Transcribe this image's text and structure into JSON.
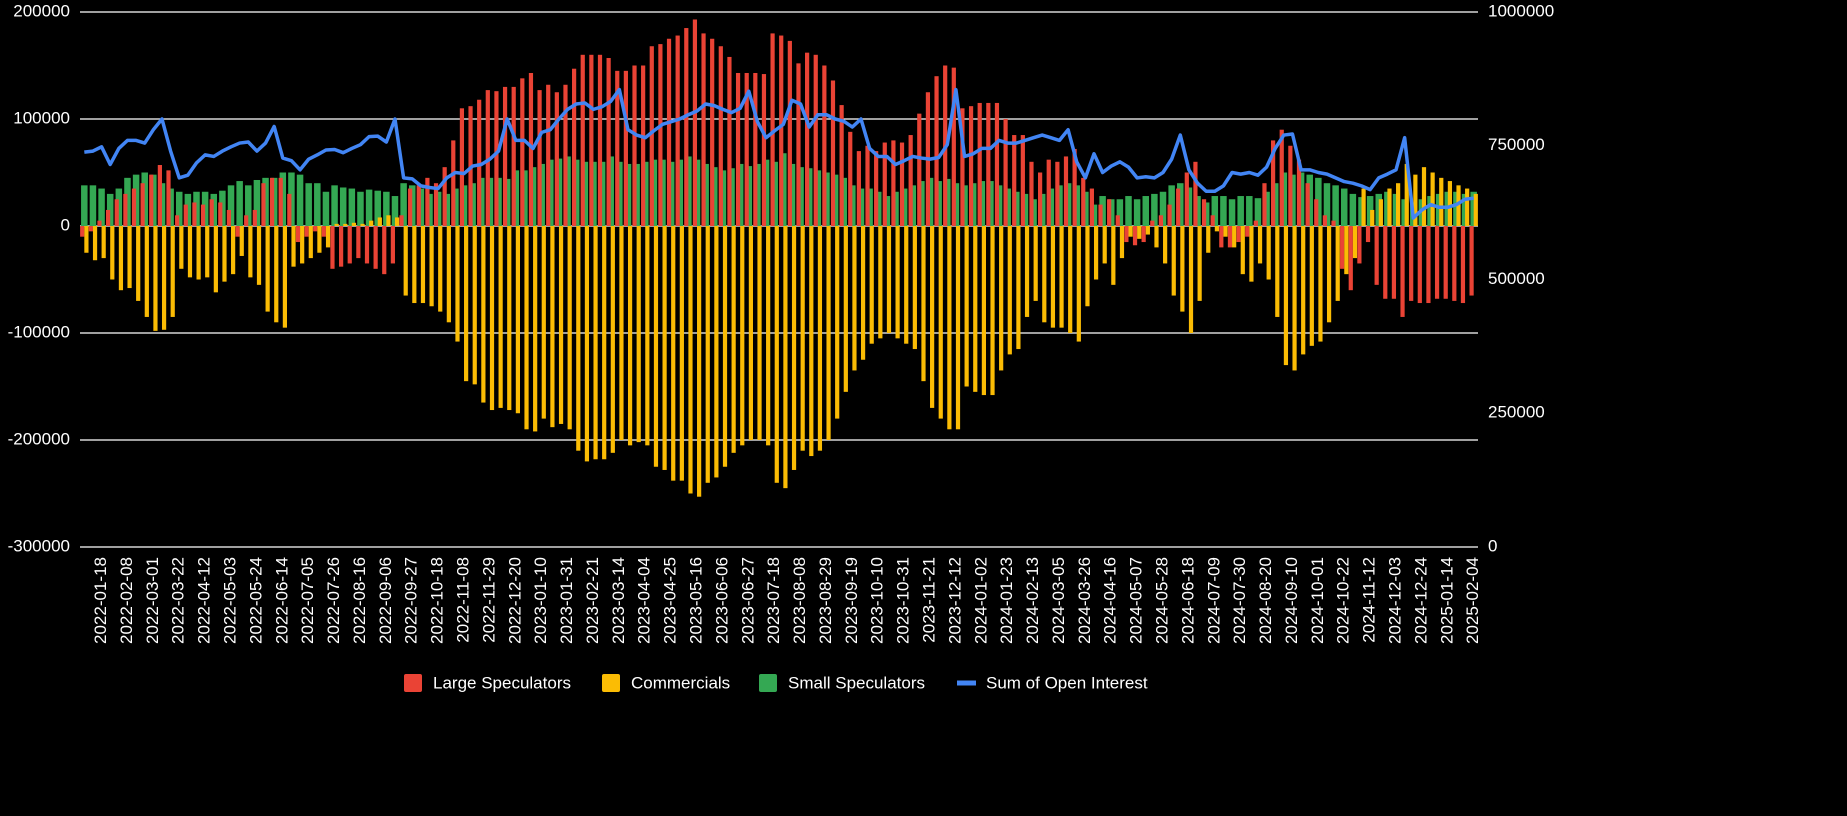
{
  "chart_data": {
    "type": "bar",
    "categories": [
      null,
      null,
      "2022-01-18",
      null,
      null,
      "2022-02-08",
      null,
      null,
      "2022-03-01",
      null,
      null,
      "2022-03-22",
      null,
      null,
      "2022-04-12",
      null,
      null,
      "2022-05-03",
      null,
      null,
      "2022-05-24",
      null,
      null,
      "2022-06-14",
      null,
      null,
      "2022-07-05",
      null,
      null,
      "2022-07-26",
      null,
      null,
      "2022-08-16",
      null,
      null,
      "2022-09-06",
      null,
      null,
      "2022-09-27",
      null,
      null,
      "2022-10-18",
      null,
      null,
      "2022-11-08",
      null,
      null,
      "2022-11-29",
      null,
      null,
      "2022-12-20",
      null,
      null,
      "2023-01-10",
      null,
      null,
      "2023-01-31",
      null,
      null,
      "2023-02-21",
      null,
      null,
      "2023-03-14",
      null,
      null,
      "2023-04-04",
      null,
      null,
      "2023-04-25",
      null,
      null,
      "2023-05-16",
      null,
      null,
      "2023-06-06",
      null,
      null,
      "2023-06-27",
      null,
      null,
      "2023-07-18",
      null,
      null,
      "2023-08-08",
      null,
      null,
      "2023-08-29",
      null,
      null,
      "2023-09-19",
      null,
      null,
      "2023-10-10",
      null,
      null,
      "2023-10-31",
      null,
      null,
      "2023-11-21",
      null,
      null,
      "2023-12-12",
      null,
      null,
      "2024-01-02",
      null,
      null,
      "2024-01-23",
      null,
      null,
      "2024-02-13",
      null,
      null,
      "2024-03-05",
      null,
      null,
      "2024-03-26",
      null,
      null,
      "2024-04-16",
      null,
      null,
      "2024-05-07",
      null,
      null,
      "2024-05-28",
      null,
      null,
      "2024-06-18",
      null,
      null,
      "2024-07-09",
      null,
      null,
      "2024-07-30",
      null,
      null,
      "2024-08-20",
      null,
      null,
      "2024-09-10",
      null,
      null,
      "2024-10-01",
      null,
      null,
      "2024-10-22",
      null,
      null,
      "2024-11-12",
      null,
      null,
      "2024-12-03",
      null,
      null,
      "2024-12-24",
      null,
      null,
      "2025-01-14",
      null,
      null,
      "2025-02-04"
    ],
    "ylim": [
      -300000,
      200000
    ],
    "yticks": [
      -300000,
      -200000,
      -100000,
      0,
      100000,
      200000
    ],
    "y2lim": [
      0,
      1000000
    ],
    "y2ticks": [
      0,
      250000,
      500000,
      750000,
      1000000
    ],
    "grid": true,
    "legend": "bottom",
    "series": [
      {
        "name": "Large Speculators",
        "type": "bar",
        "color": "#ea4335",
        "values": [
          -10000,
          -5000,
          5000,
          15000,
          25000,
          30000,
          35000,
          40000,
          48000,
          57000,
          52000,
          10000,
          20000,
          22000,
          20000,
          25000,
          22000,
          15000,
          -10000,
          10000,
          15000,
          40000,
          45000,
          45000,
          30000,
          -15000,
          -10000,
          -5000,
          -10000,
          -40000,
          -38000,
          -35000,
          -30000,
          -35000,
          -40000,
          -45000,
          -35000,
          10000,
          35000,
          38000,
          45000,
          40000,
          55000,
          80000,
          110000,
          112000,
          118000,
          127000,
          126000,
          130000,
          130000,
          138000,
          143000,
          127000,
          132000,
          125000,
          132000,
          147000,
          160000,
          160000,
          160000,
          157000,
          145000,
          145000,
          150000,
          150000,
          168000,
          170000,
          175000,
          178000,
          185000,
          193000,
          180000,
          175000,
          168000,
          158000,
          143000,
          143000,
          143000,
          142000,
          180000,
          178000,
          173000,
          152000,
          162000,
          160000,
          150000,
          136000,
          113000,
          88000,
          70000,
          75000,
          70000,
          78000,
          80000,
          78000,
          85000,
          105000,
          125000,
          140000,
          150000,
          148000,
          110000,
          112000,
          115000,
          115000,
          115000,
          100000,
          85000,
          85000,
          60000,
          50000,
          62000,
          60000,
          65000,
          72000,
          45000,
          35000,
          20000,
          25000,
          10000,
          -15000,
          -18000,
          -15000,
          5000,
          10000,
          20000,
          35000,
          50000,
          60000,
          25000,
          10000,
          -20000,
          -20000,
          -15000,
          -10000,
          5000,
          40000,
          80000,
          90000,
          75000,
          62000,
          40000,
          25000,
          10000,
          5000,
          -40000,
          -60000,
          -35000,
          -15000,
          -55000,
          -68000,
          -68000,
          -85000,
          -70000,
          -72000,
          -72000,
          -68000,
          -68000,
          -70000,
          -72000,
          -65000
        ]
      },
      {
        "name": "Commercials",
        "type": "bar",
        "color": "#fbbc04",
        "values": [
          -25000,
          -32000,
          -30000,
          -50000,
          -60000,
          -58000,
          -70000,
          -85000,
          -98000,
          -97000,
          -85000,
          -40000,
          -48000,
          -50000,
          -48000,
          -62000,
          -52000,
          -45000,
          -28000,
          -48000,
          -55000,
          -80000,
          -90000,
          -95000,
          -38000,
          -35000,
          -30000,
          -25000,
          -20000,
          2000,
          2000,
          3000,
          2000,
          5000,
          8000,
          10000,
          8000,
          -65000,
          -72000,
          -72000,
          -75000,
          -80000,
          -90000,
          -108000,
          -145000,
          -148000,
          -165000,
          -172000,
          -170000,
          -172000,
          -175000,
          -190000,
          -192000,
          -180000,
          -188000,
          -185000,
          -190000,
          -210000,
          -220000,
          -218000,
          -218000,
          -212000,
          -200000,
          -205000,
          -202000,
          -205000,
          -225000,
          -228000,
          -238000,
          -238000,
          -250000,
          -253000,
          -240000,
          -235000,
          -225000,
          -212000,
          -205000,
          -200000,
          -200000,
          -205000,
          -240000,
          -245000,
          -228000,
          -210000,
          -215000,
          -210000,
          -200000,
          -180000,
          -155000,
          -135000,
          -125000,
          -110000,
          -105000,
          -100000,
          -105000,
          -110000,
          -115000,
          -145000,
          -170000,
          -180000,
          -190000,
          -190000,
          -150000,
          -155000,
          -158000,
          -158000,
          -135000,
          -120000,
          -115000,
          -85000,
          -70000,
          -90000,
          -95000,
          -95000,
          -100000,
          -108000,
          -75000,
          -50000,
          -35000,
          -55000,
          -30000,
          -10000,
          -12000,
          -8000,
          -20000,
          -35000,
          -65000,
          -80000,
          -100000,
          -70000,
          -25000,
          -5000,
          -10000,
          -20000,
          -45000,
          -52000,
          -35000,
          -50000,
          -85000,
          -130000,
          -135000,
          -120000,
          -112000,
          -108000,
          -90000,
          -70000,
          -45000,
          -30000,
          35000,
          15000,
          25000,
          35000,
          40000,
          58000,
          48000,
          55000,
          50000,
          45000,
          42000,
          38000,
          35000,
          30000
        ]
      },
      {
        "name": "Small Speculators",
        "type": "bar",
        "color": "#34a853",
        "values": [
          38000,
          38000,
          35000,
          30000,
          35000,
          45000,
          48000,
          50000,
          48000,
          40000,
          35000,
          32000,
          30000,
          32000,
          32000,
          30000,
          33000,
          38000,
          42000,
          38000,
          43000,
          45000,
          45000,
          50000,
          50000,
          48000,
          40000,
          40000,
          32000,
          38000,
          36000,
          35000,
          32000,
          34000,
          33000,
          32000,
          28000,
          40000,
          38000,
          35000,
          30000,
          32000,
          30000,
          35000,
          38000,
          40000,
          45000,
          45000,
          45000,
          44000,
          52000,
          52000,
          55000,
          58000,
          62000,
          63000,
          65000,
          62000,
          60000,
          60000,
          60000,
          65000,
          60000,
          58000,
          58000,
          60000,
          62000,
          62000,
          60000,
          62000,
          65000,
          62000,
          58000,
          55000,
          52000,
          54000,
          58000,
          56000,
          58000,
          62000,
          60000,
          68000,
          58000,
          55000,
          54000,
          52000,
          50000,
          48000,
          45000,
          38000,
          35000,
          35000,
          32000,
          28000,
          32000,
          35000,
          38000,
          42000,
          45000,
          42000,
          44000,
          40000,
          38000,
          40000,
          42000,
          42000,
          38000,
          35000,
          32000,
          30000,
          25000,
          30000,
          35000,
          38000,
          40000,
          38000,
          32000,
          20000,
          28000,
          25000,
          25000,
          28000,
          25000,
          28000,
          30000,
          32000,
          38000,
          40000,
          36000,
          28000,
          22000,
          28000,
          28000,
          25000,
          28000,
          28000,
          26000,
          32000,
          40000,
          50000,
          48000,
          50000,
          48000,
          45000,
          40000,
          38000,
          35000,
          30000,
          27000,
          28000,
          30000,
          32000,
          30000,
          25000,
          22000,
          25000,
          28000,
          30000,
          32000,
          32000,
          30000,
          32000
        ]
      },
      {
        "name": "Sum of Open Interest",
        "type": "line",
        "axis": "y2",
        "color": "#4285f4",
        "values": [
          738000,
          740000,
          748000,
          715000,
          745000,
          760000,
          760000,
          755000,
          780000,
          800000,
          740000,
          690000,
          695000,
          718000,
          733000,
          730000,
          740000,
          748000,
          755000,
          757000,
          740000,
          755000,
          786000,
          727000,
          722000,
          705000,
          725000,
          733000,
          742000,
          743000,
          737000,
          745000,
          752000,
          767000,
          768000,
          757000,
          800000,
          690000,
          688000,
          675000,
          672000,
          670000,
          690000,
          700000,
          698000,
          712000,
          715000,
          725000,
          740000,
          800000,
          760000,
          760000,
          745000,
          775000,
          780000,
          800000,
          818000,
          828000,
          830000,
          818000,
          823000,
          833000,
          855000,
          780000,
          770000,
          765000,
          778000,
          790000,
          795000,
          800000,
          808000,
          815000,
          828000,
          825000,
          818000,
          812000,
          820000,
          852000,
          795000,
          765000,
          778000,
          790000,
          835000,
          828000,
          785000,
          808000,
          808000,
          800000,
          796000,
          785000,
          800000,
          745000,
          730000,
          730000,
          715000,
          722000,
          730000,
          727000,
          725000,
          728000,
          752000,
          855000,
          730000,
          735000,
          745000,
          745000,
          760000,
          755000,
          755000,
          760000,
          765000,
          770000,
          765000,
          760000,
          780000,
          720000,
          690000,
          735000,
          700000,
          712000,
          720000,
          710000,
          690000,
          692000,
          690000,
          700000,
          725000,
          770000,
          705000,
          680000,
          665000,
          665000,
          675000,
          700000,
          697000,
          700000,
          695000,
          710000,
          745000,
          770000,
          772000,
          705000,
          705000,
          700000,
          697000,
          690000,
          683000,
          680000,
          675000,
          668000,
          690000,
          697000,
          705000,
          765000,
          615000,
          630000,
          640000,
          635000,
          635000,
          640000,
          650000,
          652000
        ]
      }
    ]
  }
}
